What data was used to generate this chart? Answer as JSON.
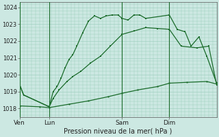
{
  "title": "",
  "xlabel": "Pression niveau de la mer( hPa )",
  "ylabel": "",
  "bg_color": "#cce8e2",
  "line_color": "#1a6b2a",
  "grid_color": "#99ccbb",
  "ylim": [
    1017.5,
    1024.3
  ],
  "xlim": [
    0,
    100
  ],
  "xtick_positions": [
    0,
    15,
    52,
    76
  ],
  "xtick_labels": [
    "Ven",
    "Lun",
    "Sam",
    "Dim"
  ],
  "ytick_positions": [
    1018,
    1019,
    1020,
    1021,
    1022,
    1023,
    1024
  ],
  "ytick_labels": [
    "1018",
    "1019",
    "1020",
    "1021",
    "1022",
    "1023",
    "1024"
  ],
  "vlines": [
    0,
    15,
    52,
    76
  ],
  "line1_x": [
    0,
    2,
    15,
    17,
    19,
    21,
    23,
    25,
    27,
    29,
    32,
    35,
    38,
    41,
    44,
    47,
    50,
    52,
    55,
    58,
    61,
    64,
    76,
    80,
    84,
    87,
    91,
    95,
    100
  ],
  "line1_y": [
    1019.4,
    1018.8,
    1018.1,
    1019.0,
    1019.3,
    1019.8,
    1020.4,
    1020.9,
    1021.2,
    1021.7,
    1022.5,
    1023.2,
    1023.5,
    1023.35,
    1023.5,
    1023.55,
    1023.55,
    1023.35,
    1023.25,
    1023.55,
    1023.55,
    1023.35,
    1023.55,
    1022.7,
    1022.55,
    1021.7,
    1022.25,
    1021.1,
    1019.5
  ],
  "line2_x": [
    0,
    2,
    15,
    17,
    20,
    24,
    27,
    31,
    36,
    41,
    46,
    52,
    58,
    64,
    70,
    76,
    82,
    90,
    96,
    100
  ],
  "line2_y": [
    1019.4,
    1018.8,
    1018.1,
    1018.6,
    1019.1,
    1019.6,
    1019.9,
    1020.2,
    1020.7,
    1021.1,
    1021.7,
    1022.4,
    1022.6,
    1022.8,
    1022.75,
    1022.7,
    1021.7,
    1021.6,
    1021.7,
    1019.4
  ],
  "line3_x": [
    0,
    10,
    15,
    25,
    35,
    45,
    52,
    60,
    70,
    76,
    85,
    95,
    100
  ],
  "line3_y": [
    1018.15,
    1018.1,
    1018.05,
    1018.25,
    1018.45,
    1018.7,
    1018.9,
    1019.1,
    1019.3,
    1019.5,
    1019.55,
    1019.6,
    1019.45
  ],
  "markersize": 2.0
}
